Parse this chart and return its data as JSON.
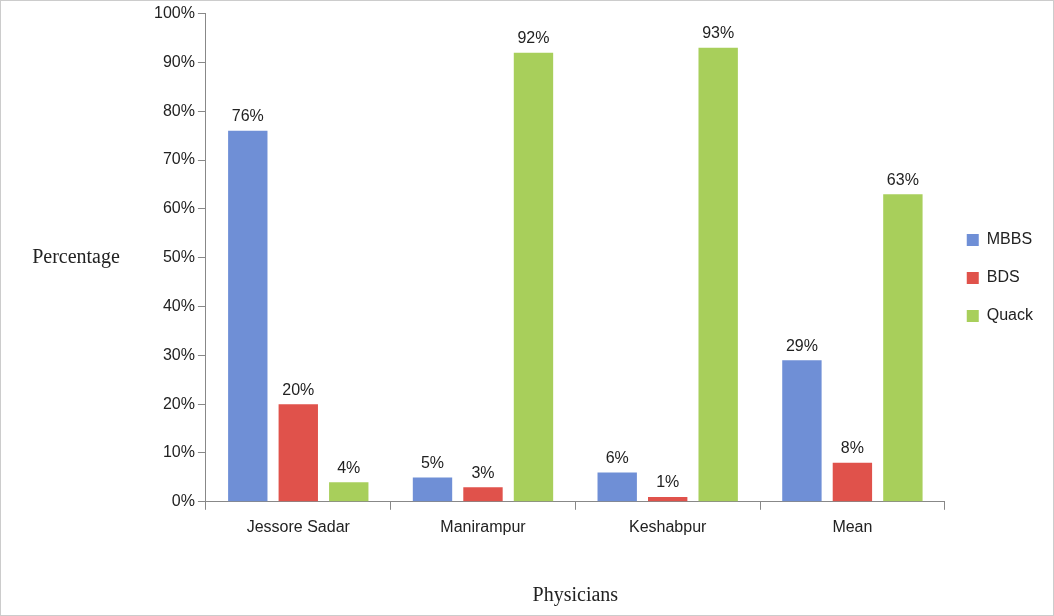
{
  "chart_data": {
    "type": "bar",
    "xlabel": "Physicians",
    "ylabel": "Percentage",
    "categories": [
      "Jessore Sadar",
      "Manirampur",
      "Keshabpur",
      "Mean"
    ],
    "series": [
      {
        "name": "MBBS",
        "color": "#6f8fd6",
        "values": [
          76,
          5,
          6,
          29
        ],
        "value_labels": [
          "76%",
          "5%",
          "6%",
          "29%"
        ]
      },
      {
        "name": "BDS",
        "color": "#e0524b",
        "values": [
          20,
          3,
          1,
          8
        ],
        "value_labels": [
          "20%",
          "3%",
          "1%",
          "8%"
        ]
      },
      {
        "name": "Quack",
        "color": "#a8cf5b",
        "values": [
          4,
          92,
          93,
          63
        ],
        "value_labels": [
          "4%",
          "92%",
          "93%",
          "63%"
        ]
      }
    ],
    "ylim": [
      0,
      100
    ],
    "yticks": [
      {
        "value": 0,
        "label": "0%"
      },
      {
        "value": 10,
        "label": "10%"
      },
      {
        "value": 20,
        "label": "20%"
      },
      {
        "value": 30,
        "label": "30%"
      },
      {
        "value": 40,
        "label": "40%"
      },
      {
        "value": 50,
        "label": "50%"
      },
      {
        "value": 60,
        "label": "60%"
      },
      {
        "value": 70,
        "label": "70%"
      },
      {
        "value": 80,
        "label": "80%"
      },
      {
        "value": 90,
        "label": "90%"
      },
      {
        "value": 100,
        "label": "100%"
      }
    ],
    "legend": "right"
  }
}
